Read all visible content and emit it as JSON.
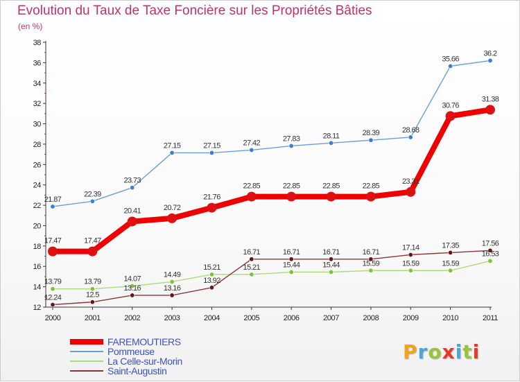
{
  "header": {
    "title": "Evolution du Taux de Taxe Foncière sur les Propriétés Bâties",
    "unit": "(en %)"
  },
  "logo": {
    "text": "Proxiti",
    "colors": [
      "#f2a21c",
      "#4aa7d8",
      "#9ac43c",
      "#e5392b",
      "#4aa7d8",
      "#9ac43c",
      "#e5392b"
    ]
  },
  "chart_data": {
    "type": "line",
    "title": "Evolution du Taux de Taxe Foncière sur les Propriétés Bâties",
    "ylabel": "(en %)",
    "xlabel": "",
    "x": [
      "2000",
      "2001",
      "2002",
      "2003",
      "2004",
      "2005",
      "2006",
      "2007",
      "2008",
      "2009",
      "2010",
      "2011"
    ],
    "ylim": [
      12,
      38
    ],
    "yticks": [
      "12",
      "14",
      "16",
      "18",
      "20",
      "22",
      "24",
      "26",
      "28",
      "30",
      "32",
      "34",
      "36",
      "38"
    ],
    "grid": false,
    "legend_position": "bottom-left",
    "series": [
      {
        "name": "FAREMOUTIERS",
        "color": "#ee0000",
        "marker_fill": "#dd1111",
        "emphasis": true,
        "values": [
          17.47,
          17.47,
          20.41,
          20.72,
          21.76,
          22.85,
          22.85,
          22.85,
          22.85,
          23.31,
          30.76,
          31.38
        ],
        "labels": [
          "17.47",
          "17.47",
          "20.41",
          "20.72",
          "21.76",
          "22.85",
          "22.85",
          "22.85",
          "22.85",
          "23.31",
          "30.76",
          "31.38"
        ]
      },
      {
        "name": "Pommeuse",
        "color": "#6a9fd4",
        "marker_fill": "#3d7fcc",
        "emphasis": false,
        "values": [
          21.87,
          22.39,
          23.73,
          27.15,
          27.15,
          27.42,
          27.83,
          28.11,
          28.39,
          28.68,
          35.66,
          36.2
        ],
        "labels": [
          "21.87",
          "22.39",
          "23.73",
          "27.15",
          "27.15",
          "27.42",
          "27.83",
          "28.11",
          "28.39",
          "28.68",
          "35.66",
          "36.2"
        ]
      },
      {
        "name": "La Celle-sur-Morin",
        "color": "#a8dc78",
        "marker_fill": "#78c43c",
        "emphasis": false,
        "values": [
          13.79,
          13.79,
          14.07,
          14.49,
          15.21,
          15.21,
          15.44,
          15.44,
          15.59,
          15.59,
          15.59,
          16.53
        ],
        "labels": [
          "13.79",
          "13.79",
          "14.07",
          "14.49",
          "15.21",
          "15.21",
          "15.44",
          "15.44",
          "15.59",
          "15.59",
          "15.59",
          "16.53"
        ]
      },
      {
        "name": "Saint-Augustin",
        "color": "#8a3434",
        "marker_fill": "#661818",
        "emphasis": false,
        "values": [
          12.24,
          12.5,
          13.16,
          13.16,
          13.92,
          16.71,
          16.71,
          16.71,
          16.71,
          17.14,
          17.35,
          17.56
        ],
        "labels": [
          "12.24",
          "12.5",
          "13.16",
          "13.16",
          "13.92",
          "16.71",
          "16.71",
          "16.71",
          "16.71",
          "17.14",
          "17.35",
          "17.56"
        ]
      }
    ]
  }
}
